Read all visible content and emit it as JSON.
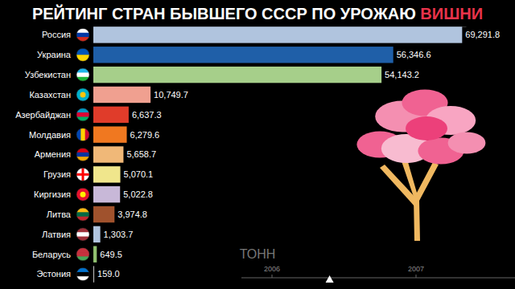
{
  "chart_data": {
    "type": "bar",
    "title": "РЕЙТИНГ СТРАН БЫВШЕГО СССР ПО УРОЖАЮ ВИШНИ",
    "orientation": "horizontal",
    "categories": [
      "Россия",
      "Украина",
      "Узбекистан",
      "Казахстан",
      "Азербайджан",
      "Молдавия",
      "Армения",
      "Грузия",
      "Киргизия",
      "Литва",
      "Латвия",
      "Беларусь",
      "Эстония"
    ],
    "values": [
      69291.8,
      56346.6,
      54143.2,
      10749.7,
      6637.3,
      6279.6,
      5658.7,
      5070.1,
      5022.8,
      3974.8,
      1303.7,
      649.5,
      159.0
    ],
    "value_labels": [
      "69,291.8",
      "56,346.6",
      "54,143.2",
      "10,749.7",
      "6,637.3",
      "6,279.6",
      "5,658.7",
      "5,070.1",
      "5,022.8",
      "3,974.8",
      "1,303.7",
      "649.5",
      "159.0"
    ],
    "data_labels": true,
    "colors": [
      "#b0c4de",
      "#1f5fa8",
      "#a6cf8a",
      "#f0a090",
      "#e03c2a",
      "#f07820",
      "#f0b878",
      "#f0e68c",
      "#c8b8d8",
      "#a0522d",
      "#b0c4de",
      "#90c070",
      "#c0c0c0"
    ],
    "xlabel": "ТОНН",
    "xlim": [
      0,
      70000
    ],
    "xticks": [],
    "tick_labels": "y",
    "timeline_ticks": [
      2006,
      2007
    ],
    "timeline_value": 2006.4
  }
}
